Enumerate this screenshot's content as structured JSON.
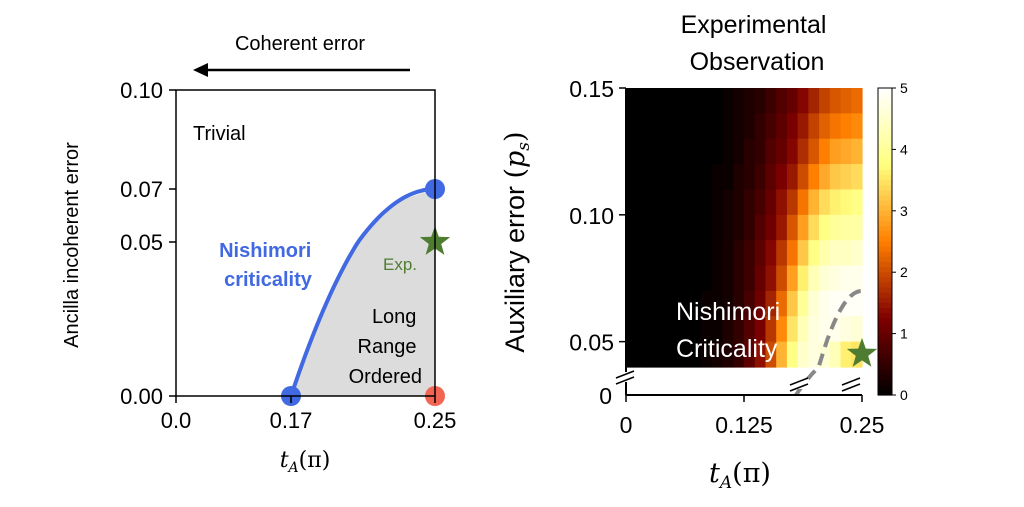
{
  "chart_data": [
    {
      "type": "line",
      "annotation_top": "Coherent error",
      "ylabel": "Ancilla incoherent error",
      "xlabel": {
        "main": "t",
        "sub": "A",
        "rest": "(π)"
      },
      "xlim": [
        0,
        0.25
      ],
      "ylim": [
        0,
        0.1
      ],
      "xticks": [
        {
          "value": 0.0,
          "label": "0.0"
        },
        {
          "value": 0.17,
          "label": "0.17"
        },
        {
          "value": 0.25,
          "label": "0.25"
        }
      ],
      "yticks": [
        {
          "value": 0.0,
          "label": "0.00"
        },
        {
          "value": 0.05,
          "label": "0.05"
        },
        {
          "value": 0.07,
          "label": "0.07"
        },
        {
          "value": 0.1,
          "label": "0.10"
        }
      ],
      "regions": [
        {
          "label_lines": [
            "Trivial"
          ]
        },
        {
          "label_lines": [
            "Long",
            "Range",
            "Ordered"
          ],
          "fill": "#dcdcdc"
        }
      ],
      "series": [
        {
          "name": "Nishimori criticality",
          "label_lines": [
            "Nishimori",
            "criticality"
          ],
          "color": "#4169e1",
          "x": [
            0.17,
            0.19,
            0.21,
            0.23,
            0.25
          ],
          "y": [
            0.0,
            0.0306,
            0.0525,
            0.0656,
            0.07
          ]
        }
      ],
      "markers": [
        {
          "x": 0.17,
          "y": 0.0,
          "shape": "circle",
          "color": "#4169e1"
        },
        {
          "x": 0.25,
          "y": 0.07,
          "shape": "circle",
          "color": "#4169e1"
        },
        {
          "x": 0.25,
          "y": 0.0,
          "shape": "circle",
          "color": "#f26552"
        },
        {
          "x": 0.25,
          "y": 0.05,
          "shape": "star",
          "color": "#4e7d32",
          "label": "Exp."
        }
      ]
    },
    {
      "type": "heatmap",
      "title_lines": [
        "Experimental",
        "Observation"
      ],
      "ylabel": {
        "main": "Auxiliary error ",
        "var": "p",
        "sub": "s"
      },
      "xlabel": {
        "main": "t",
        "sub": "A",
        "rest": "(π)"
      },
      "xlim": [
        0,
        0.25
      ],
      "ylim": [
        0.04,
        0.15
      ],
      "axis_break": true,
      "xticks": [
        {
          "value": 0,
          "label": "0"
        },
        {
          "value": 0.125,
          "label": "0.125"
        },
        {
          "value": 0.25,
          "label": "0.25"
        }
      ],
      "yticks": [
        {
          "value": 0.05,
          "label": "0.05"
        },
        {
          "value": 0.1,
          "label": "0.10"
        },
        {
          "value": 0.15,
          "label": "0.15"
        }
      ],
      "ybreak_tick": "0",
      "colormap": "afmhot",
      "colorbar": {
        "range": [
          0,
          5
        ],
        "ticks": [
          "0",
          "1",
          "2",
          "3",
          "4",
          "5"
        ]
      },
      "annotation_lines": [
        "Nishimori",
        "Criticality"
      ],
      "dashed_curve": {
        "color": "#888888",
        "x": [
          0.18,
          0.2,
          0.22,
          0.24,
          0.25
        ],
        "y": [
          0.0,
          0.0363,
          0.0586,
          0.0686,
          0.07
        ]
      },
      "star": {
        "x": 0.25,
        "y": 0.044,
        "color": "#4e7d32"
      },
      "rows_top_to_bottom": [
        [
          0,
          0,
          0,
          0,
          0,
          0,
          0,
          0,
          0,
          0.1,
          0.2,
          0.3,
          0.4,
          0.6,
          0.8,
          1.0,
          1.3,
          1.6,
          1.9,
          2.1,
          2.2,
          2.3
        ],
        [
          0,
          0,
          0,
          0,
          0,
          0,
          0,
          0,
          0,
          0.1,
          0.2,
          0.3,
          0.5,
          0.7,
          0.9,
          1.2,
          1.5,
          1.9,
          2.2,
          2.4,
          2.5,
          2.6
        ],
        [
          0,
          0,
          0,
          0,
          0,
          0,
          0,
          0,
          0,
          0.1,
          0.2,
          0.4,
          0.5,
          0.8,
          1.0,
          1.3,
          1.7,
          2.1,
          2.5,
          2.8,
          2.9,
          3.0
        ],
        [
          0,
          0,
          0,
          0,
          0,
          0,
          0,
          0,
          0.1,
          0.1,
          0.3,
          0.4,
          0.6,
          0.9,
          1.2,
          1.5,
          2.0,
          2.5,
          2.9,
          3.2,
          3.3,
          3.4
        ],
        [
          0,
          0,
          0,
          0,
          0,
          0,
          0,
          0,
          0.1,
          0.2,
          0.3,
          0.5,
          0.7,
          1.0,
          1.4,
          1.8,
          2.4,
          3.0,
          3.4,
          3.6,
          3.7,
          3.8
        ],
        [
          0,
          0,
          0,
          0,
          0,
          0,
          0,
          0,
          0.1,
          0.2,
          0.3,
          0.5,
          0.8,
          1.1,
          1.5,
          2.1,
          2.8,
          3.4,
          3.8,
          4.0,
          4.1,
          4.1
        ],
        [
          0,
          0,
          0,
          0,
          0,
          0,
          0,
          0,
          0.1,
          0.2,
          0.4,
          0.6,
          0.9,
          1.3,
          1.8,
          2.4,
          3.2,
          3.8,
          4.2,
          4.4,
          4.4,
          4.5
        ],
        [
          0,
          0,
          0,
          0,
          0,
          0,
          0,
          0,
          0.1,
          0.2,
          0.4,
          0.6,
          1.0,
          1.4,
          2.0,
          2.8,
          3.6,
          4.3,
          4.6,
          4.7,
          4.8,
          4.8
        ],
        [
          0,
          0,
          0,
          0,
          0,
          0,
          0,
          0.1,
          0.1,
          0.2,
          0.4,
          0.7,
          1.1,
          1.6,
          2.3,
          3.2,
          4.0,
          4.6,
          4.8,
          4.9,
          4.9,
          4.9
        ],
        [
          0,
          0,
          0,
          0,
          0,
          0,
          0,
          0.1,
          0.1,
          0.3,
          0.5,
          0.8,
          1.2,
          1.8,
          2.6,
          3.5,
          4.3,
          4.7,
          4.8,
          4.8,
          4.7,
          4.6
        ],
        [
          0,
          0,
          0,
          0,
          0,
          0,
          0,
          0.1,
          0.2,
          0.3,
          0.5,
          0.9,
          1.4,
          2.0,
          3.0,
          3.8,
          4.5,
          4.7,
          4.6,
          4.3,
          3.6,
          3.5
        ]
      ]
    }
  ]
}
